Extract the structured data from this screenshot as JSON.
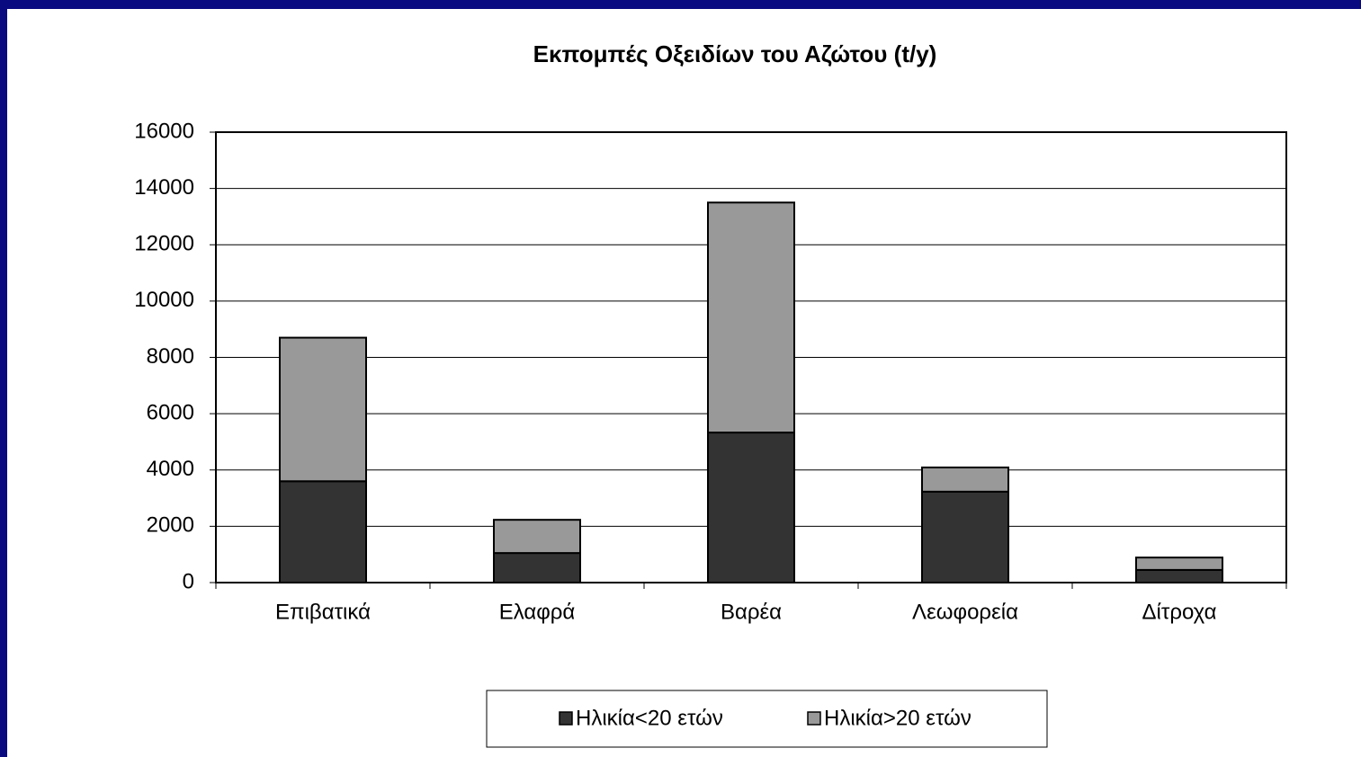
{
  "chart_data": {
    "type": "stacked_bar",
    "title": "Εκπομπές Οξειδίων του Αζώτου (t/y)",
    "categories": [
      "Επιβατικά",
      "Ελαφρά",
      "Βαρέα",
      "Λεωφορεία",
      "Δίτροχα"
    ],
    "series": [
      {
        "name": "Ηλικία<20 ετών",
        "color": "#333333",
        "values": [
          3600,
          1050,
          5330,
          3230,
          450
        ]
      },
      {
        "name": "Ηλικία>20 ετών",
        "color": "#999999",
        "values": [
          5100,
          1180,
          8170,
          860,
          440
        ]
      }
    ],
    "ylim": [
      0,
      16000
    ],
    "yticks": [
      0,
      2000,
      4000,
      6000,
      8000,
      10000,
      12000,
      14000,
      16000
    ],
    "grid": true,
    "legend": "bottom"
  }
}
